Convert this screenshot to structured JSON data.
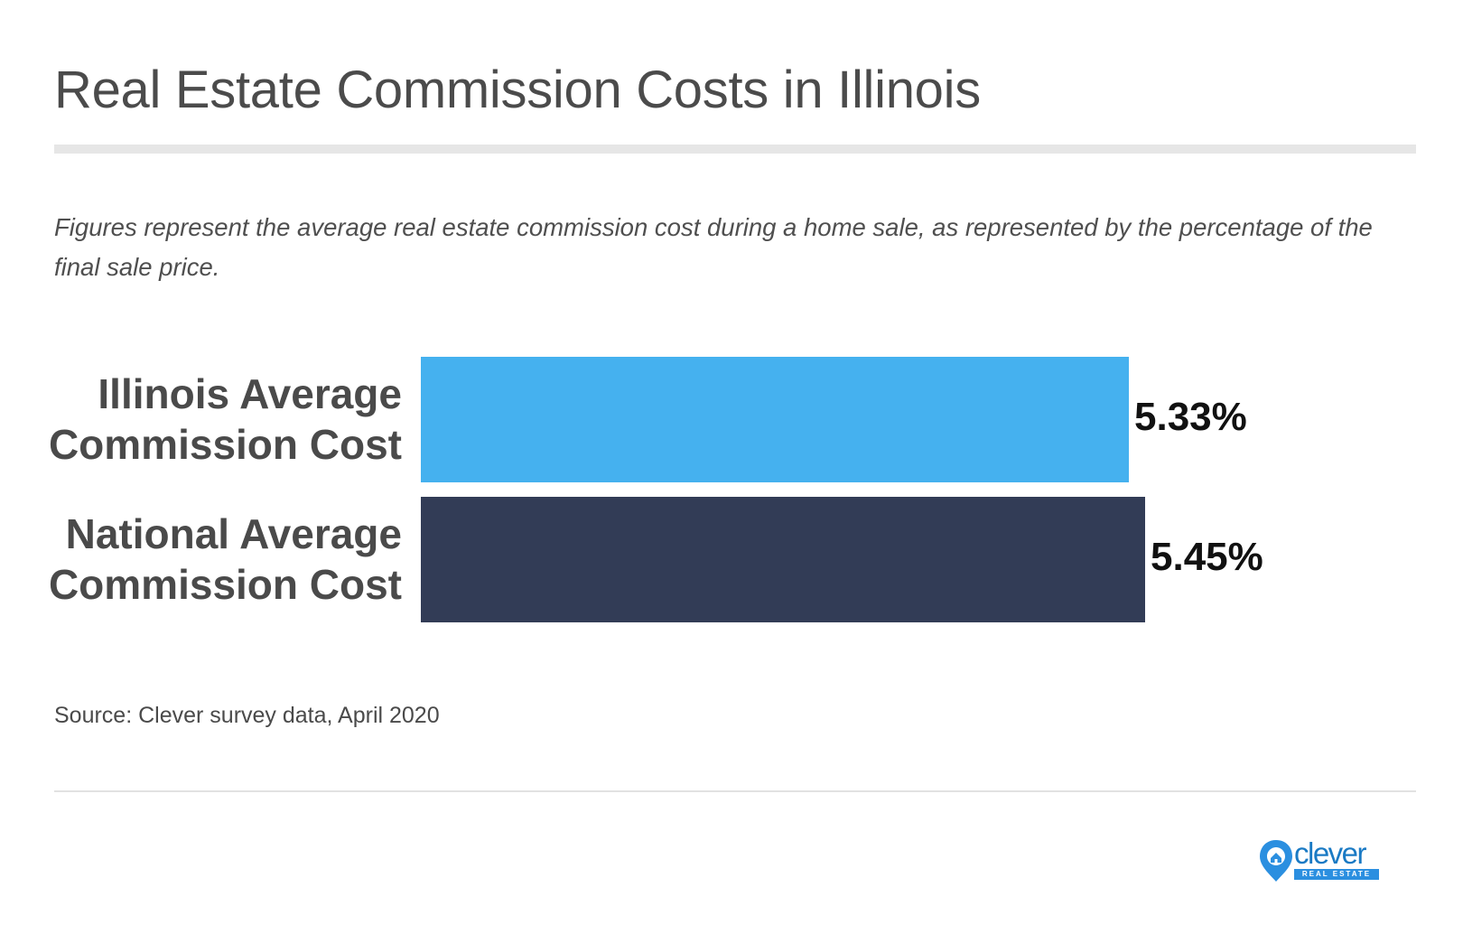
{
  "title": "Real Estate Commission Costs in Illinois",
  "subtitle": "Figures represent the average real estate commission cost during a home sale, as represented by the percentage of the final sale price.",
  "source": "Source: Clever survey data, April 2020",
  "logo": {
    "word": "clever",
    "sub": "REAL ESTATE",
    "color": "#2b8fe0"
  },
  "chart_data": {
    "type": "bar",
    "orientation": "horizontal",
    "title": "Real Estate Commission Costs in Illinois",
    "categories": [
      "Illinois Average Commission Cost",
      "National Average Commission Cost"
    ],
    "values": [
      5.33,
      5.45
    ],
    "value_labels": [
      "5.33%",
      "5.45%"
    ],
    "colors": [
      "#45b1ef",
      "#323c56"
    ],
    "unit": "%",
    "xlim": [
      0,
      5.45
    ],
    "grid": false,
    "legend": "none"
  }
}
